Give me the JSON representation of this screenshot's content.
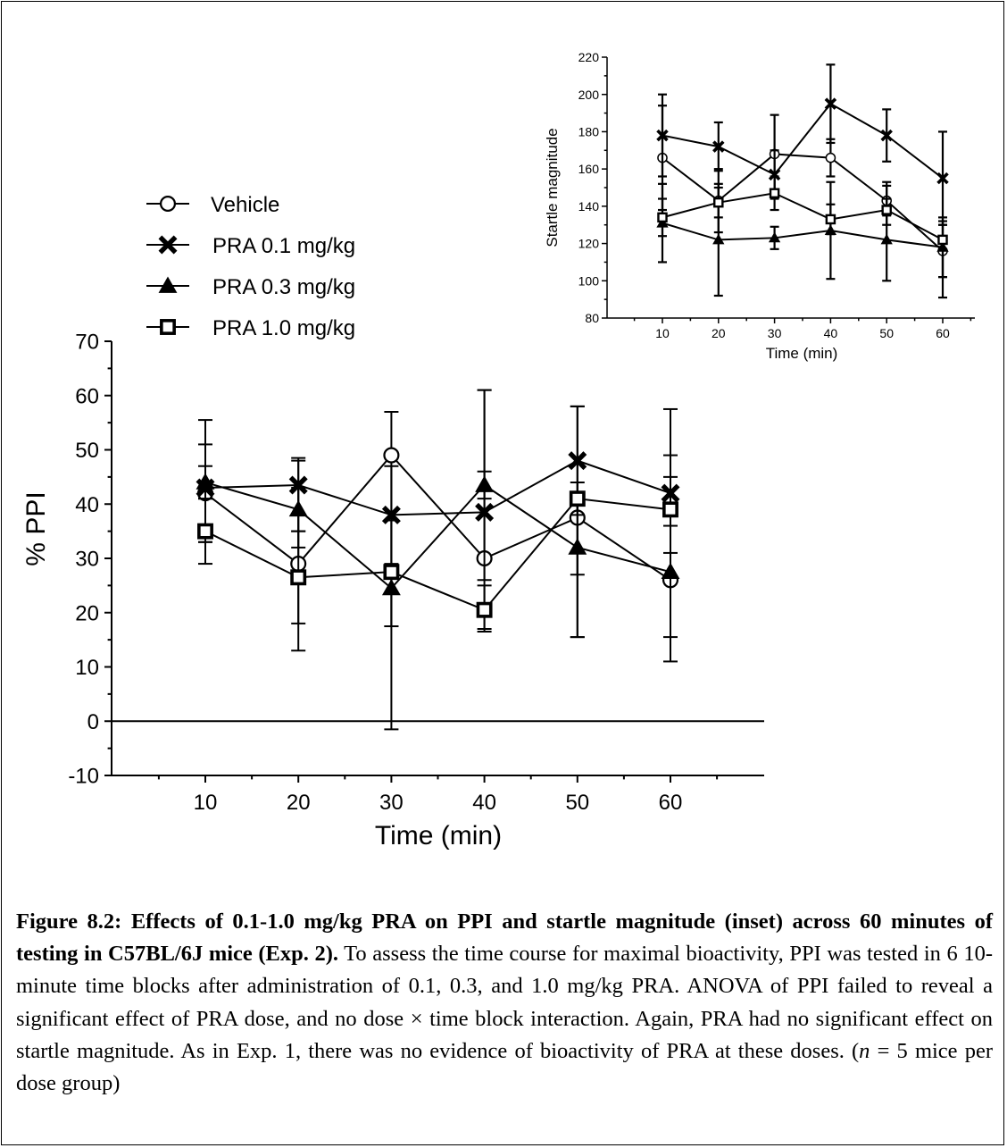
{
  "main_chart": {
    "ylabel": "% PPI",
    "xlabel": "Time (min)",
    "y_ticks": [
      "70",
      "60",
      "50",
      "40",
      "30",
      "20",
      "10",
      "0",
      "-10"
    ],
    "x_ticks": [
      "10",
      "20",
      "30",
      "40",
      "50",
      "60"
    ]
  },
  "inset_chart": {
    "ylabel": "Startle magnitude",
    "xlabel": "Time (min)",
    "y_ticks": [
      "220",
      "200",
      "180",
      "160",
      "140",
      "120",
      "100",
      "80"
    ],
    "x_ticks": [
      "10",
      "20",
      "30",
      "40",
      "50",
      "60"
    ]
  },
  "legend": [
    {
      "label": "Vehicle",
      "marker": "open-circle"
    },
    {
      "label": "PRA 0.1 mg/kg",
      "marker": "x-cross"
    },
    {
      "label": "PRA 0.3 mg/kg",
      "marker": "filled-triangle"
    },
    {
      "label": "PRA 1.0 mg/kg",
      "marker": "open-square"
    }
  ],
  "caption": {
    "bold": "Figure 8.2: Effects of 0.1-1.0 mg/kg PRA on PPI and startle magnitude (inset) across 60 minutes of testing in C57BL/6J mice (Exp. 2).",
    "text_before_n": " To assess the time course for maximal bioactivity, PPI was tested in 6 10-minute time blocks after administration of 0.1, 0.3, and 1.0 mg/kg PRA. ANOVA of PPI failed to reveal a significant effect of PRA dose, and no dose × time block interaction. Again, PRA had no significant effect on startle magnitude. As in Exp. 1, there was no evidence of bioactivity of PRA at these doses. (",
    "n_symbol": "n",
    "text_after_n": " = 5 mice per dose group)"
  },
  "chart_data": [
    {
      "type": "line",
      "xlabel": "Time (min)",
      "ylabel": "% PPI",
      "x": [
        10,
        20,
        30,
        40,
        50,
        60
      ],
      "ylim": [
        -10,
        70
      ],
      "y_ticks": [
        -10,
        0,
        10,
        20,
        30,
        40,
        50,
        60,
        70
      ],
      "reference_line": 0,
      "series": [
        {
          "name": "Vehicle",
          "marker": "open-circle",
          "values": [
            42,
            29,
            49,
            30,
            37.5,
            26
          ],
          "err_high": [
            51,
            43,
            57,
            61,
            58,
            49
          ],
          "err_low": [
            33,
            18,
            17.5,
            17,
            15.5,
            15.5
          ]
        },
        {
          "name": "PRA 0.1 mg/kg",
          "marker": "x-cross",
          "values": [
            43,
            43.5,
            38,
            38.5,
            48,
            42
          ],
          "err_high": [
            55.5,
            48.5,
            47,
            61,
            58,
            57.5
          ],
          "err_low": [
            33,
            35,
            29,
            26,
            38,
            26.5
          ]
        },
        {
          "name": "PRA 0.3 mg/kg",
          "marker": "filled-triangle",
          "values": [
            44,
            39,
            24.5,
            43.5,
            32,
            27.5
          ],
          "err_high": [
            47,
            48,
            28,
            46,
            40,
            31
          ],
          "err_low": [
            41,
            32,
            -1.5,
            41,
            27,
            11
          ]
        },
        {
          "name": "PRA 1.0 mg/kg",
          "marker": "open-square",
          "values": [
            35,
            26.5,
            27.5,
            20.5,
            41,
            39
          ],
          "err_high": [
            41,
            35,
            37,
            25,
            44,
            45
          ],
          "err_low": [
            29,
            13,
            17.5,
            16.5,
            15.5,
            36
          ]
        }
      ]
    },
    {
      "type": "line",
      "title": "",
      "xlabel": "Time (min)",
      "ylabel": "Startle magnitude",
      "x": [
        10,
        20,
        30,
        40,
        50,
        60
      ],
      "ylim": [
        80,
        220
      ],
      "y_ticks": [
        80,
        100,
        120,
        140,
        160,
        180,
        200,
        220
      ],
      "series": [
        {
          "name": "Vehicle",
          "marker": "open-circle",
          "values": [
            166,
            143,
            168,
            166,
            143,
            116
          ],
          "err_high": [
            194,
            160,
            189,
            176,
            151,
            130
          ],
          "err_low": [
            138,
            126,
            147,
            156,
            135,
            102
          ]
        },
        {
          "name": "PRA 0.1 mg/kg",
          "marker": "x-cross",
          "values": [
            178,
            172,
            157,
            195,
            178,
            155
          ],
          "err_high": [
            200,
            185,
            170,
            216,
            192,
            180
          ],
          "err_low": [
            156,
            159,
            144,
            174,
            164,
            130
          ]
        },
        {
          "name": "PRA 0.3 mg/kg",
          "marker": "filled-triangle",
          "values": [
            131,
            122,
            123,
            127,
            122,
            118
          ],
          "err_high": [
            152,
            152,
            129,
            153,
            144,
            134
          ],
          "err_low": [
            110,
            92,
            117,
            101,
            100,
            102
          ]
        },
        {
          "name": "PRA 1.0 mg/kg",
          "marker": "open-square",
          "values": [
            134,
            142,
            147,
            133,
            138,
            122
          ],
          "err_high": [
            144,
            150,
            156,
            141,
            153,
            132
          ],
          "err_low": [
            124,
            134,
            138,
            125,
            130,
            91
          ]
        }
      ]
    }
  ]
}
